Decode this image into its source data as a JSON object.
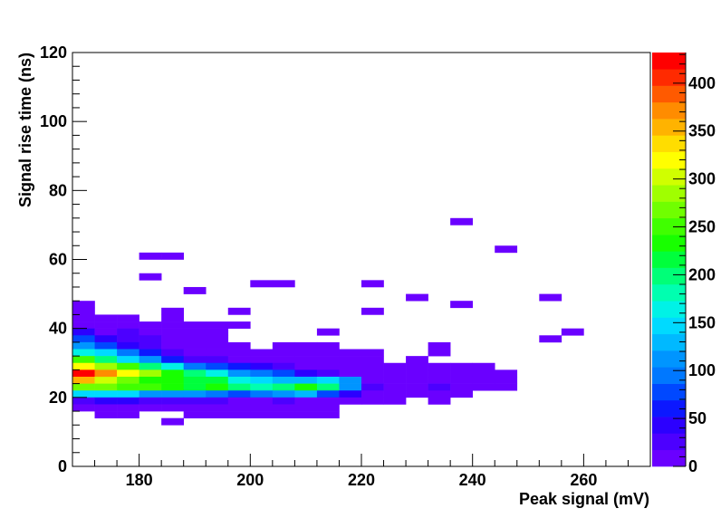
{
  "chart_data": {
    "type": "heatmap",
    "xlabel": "Peak signal (mV)",
    "ylabel": "Signal rise time (ns)",
    "xlim": [
      168,
      272
    ],
    "ylim": [
      0,
      120
    ],
    "x_ticks": [
      180,
      200,
      220,
      240,
      260
    ],
    "y_ticks": [
      0,
      20,
      40,
      60,
      80,
      100,
      120
    ],
    "bin_width_x": 4,
    "bin_width_y": 2,
    "colorbar": {
      "range": [
        0,
        432
      ],
      "ticks": [
        0,
        50,
        100,
        150,
        200,
        250,
        300,
        350,
        400
      ],
      "palette": [
        "#6a00ff",
        "#4c00ff",
        "#2c00ff",
        "#0c18ff",
        "#0048ff",
        "#0078ff",
        "#0095ff",
        "#00b9ff",
        "#00daff",
        "#00f2e6",
        "#00ffb0",
        "#00ff78",
        "#00ff3c",
        "#18ff00",
        "#40ff00",
        "#70ff00",
        "#a0ff00",
        "#d0ff00",
        "#ffff00",
        "#ffdd00",
        "#ffb300",
        "#ff8c00",
        "#ff5a00",
        "#ff2a00",
        "#ff0000"
      ]
    },
    "cells": [
      {
        "x": 168,
        "y": 46,
        "v": 2
      },
      {
        "x": 168,
        "y": 44,
        "v": 2
      },
      {
        "x": 172,
        "y": 42,
        "v": 2
      },
      {
        "x": 176,
        "y": 42,
        "v": 2
      },
      {
        "x": 184,
        "y": 42,
        "v": 2
      },
      {
        "x": 168,
        "y": 42,
        "v": 2
      },
      {
        "x": 168,
        "y": 40,
        "v": 5
      },
      {
        "x": 172,
        "y": 40,
        "v": 4
      },
      {
        "x": 176,
        "y": 40,
        "v": 3
      },
      {
        "x": 180,
        "y": 40,
        "v": 3
      },
      {
        "x": 184,
        "y": 40,
        "v": 3
      },
      {
        "x": 188,
        "y": 40,
        "v": 3
      },
      {
        "x": 192,
        "y": 40,
        "v": 3
      },
      {
        "x": 168,
        "y": 38,
        "v": 40
      },
      {
        "x": 172,
        "y": 38,
        "v": 10
      },
      {
        "x": 176,
        "y": 38,
        "v": 20
      },
      {
        "x": 180,
        "y": 38,
        "v": 5
      },
      {
        "x": 184,
        "y": 38,
        "v": 4
      },
      {
        "x": 188,
        "y": 38,
        "v": 4
      },
      {
        "x": 192,
        "y": 38,
        "v": 4
      },
      {
        "x": 168,
        "y": 36,
        "v": 70
      },
      {
        "x": 172,
        "y": 36,
        "v": 40
      },
      {
        "x": 176,
        "y": 36,
        "v": 30
      },
      {
        "x": 180,
        "y": 36,
        "v": 20
      },
      {
        "x": 184,
        "y": 36,
        "v": 4
      },
      {
        "x": 188,
        "y": 36,
        "v": 4
      },
      {
        "x": 192,
        "y": 36,
        "v": 4
      },
      {
        "x": 168,
        "y": 34,
        "v": 120
      },
      {
        "x": 172,
        "y": 34,
        "v": 80
      },
      {
        "x": 176,
        "y": 34,
        "v": 50
      },
      {
        "x": 180,
        "y": 34,
        "v": 30
      },
      {
        "x": 184,
        "y": 34,
        "v": 10
      },
      {
        "x": 188,
        "y": 34,
        "v": 5
      },
      {
        "x": 192,
        "y": 34,
        "v": 4
      },
      {
        "x": 196,
        "y": 34,
        "v": 3
      },
      {
        "x": 204,
        "y": 34,
        "v": 3
      },
      {
        "x": 208,
        "y": 34,
        "v": 3
      },
      {
        "x": 212,
        "y": 34,
        "v": 3
      },
      {
        "x": 232,
        "y": 34,
        "v": 10
      },
      {
        "x": 168,
        "y": 32,
        "v": 170
      },
      {
        "x": 172,
        "y": 32,
        "v": 140
      },
      {
        "x": 176,
        "y": 32,
        "v": 100
      },
      {
        "x": 180,
        "y": 32,
        "v": 60
      },
      {
        "x": 184,
        "y": 32,
        "v": 30
      },
      {
        "x": 188,
        "y": 32,
        "v": 10
      },
      {
        "x": 192,
        "y": 32,
        "v": 5
      },
      {
        "x": 196,
        "y": 32,
        "v": 4
      },
      {
        "x": 200,
        "y": 32,
        "v": 3
      },
      {
        "x": 204,
        "y": 32,
        "v": 3
      },
      {
        "x": 208,
        "y": 32,
        "v": 3
      },
      {
        "x": 212,
        "y": 32,
        "v": 3
      },
      {
        "x": 216,
        "y": 32,
        "v": 3
      },
      {
        "x": 220,
        "y": 32,
        "v": 3
      },
      {
        "x": 232,
        "y": 32,
        "v": 10
      },
      {
        "x": 168,
        "y": 30,
        "v": 250
      },
      {
        "x": 172,
        "y": 30,
        "v": 200
      },
      {
        "x": 176,
        "y": 30,
        "v": 150
      },
      {
        "x": 180,
        "y": 30,
        "v": 110
      },
      {
        "x": 184,
        "y": 30,
        "v": 60
      },
      {
        "x": 188,
        "y": 30,
        "v": 30
      },
      {
        "x": 192,
        "y": 30,
        "v": 20
      },
      {
        "x": 196,
        "y": 30,
        "v": 10
      },
      {
        "x": 200,
        "y": 30,
        "v": 5
      },
      {
        "x": 204,
        "y": 30,
        "v": 4
      },
      {
        "x": 208,
        "y": 30,
        "v": 4
      },
      {
        "x": 212,
        "y": 30,
        "v": 3
      },
      {
        "x": 216,
        "y": 30,
        "v": 3
      },
      {
        "x": 220,
        "y": 30,
        "v": 3
      },
      {
        "x": 228,
        "y": 30,
        "v": 3
      },
      {
        "x": 168,
        "y": 28,
        "v": 320
      },
      {
        "x": 172,
        "y": 28,
        "v": 280
      },
      {
        "x": 176,
        "y": 28,
        "v": 250
      },
      {
        "x": 180,
        "y": 28,
        "v": 200
      },
      {
        "x": 184,
        "y": 28,
        "v": 160
      },
      {
        "x": 188,
        "y": 28,
        "v": 100
      },
      {
        "x": 192,
        "y": 28,
        "v": 80
      },
      {
        "x": 196,
        "y": 28,
        "v": 60
      },
      {
        "x": 200,
        "y": 28,
        "v": 40
      },
      {
        "x": 204,
        "y": 28,
        "v": 20
      },
      {
        "x": 208,
        "y": 28,
        "v": 10
      },
      {
        "x": 212,
        "y": 28,
        "v": 10
      },
      {
        "x": 216,
        "y": 28,
        "v": 5
      },
      {
        "x": 220,
        "y": 28,
        "v": 3
      },
      {
        "x": 224,
        "y": 28,
        "v": 3
      },
      {
        "x": 228,
        "y": 28,
        "v": 3
      },
      {
        "x": 232,
        "y": 28,
        "v": 3
      },
      {
        "x": 236,
        "y": 28,
        "v": 3
      },
      {
        "x": 240,
        "y": 28,
        "v": 3
      },
      {
        "x": 168,
        "y": 26,
        "v": 432
      },
      {
        "x": 172,
        "y": 26,
        "v": 380
      },
      {
        "x": 176,
        "y": 26,
        "v": 320
      },
      {
        "x": 180,
        "y": 26,
        "v": 280
      },
      {
        "x": 184,
        "y": 26,
        "v": 240
      },
      {
        "x": 188,
        "y": 26,
        "v": 200
      },
      {
        "x": 192,
        "y": 26,
        "v": 160
      },
      {
        "x": 196,
        "y": 26,
        "v": 120
      },
      {
        "x": 200,
        "y": 26,
        "v": 90
      },
      {
        "x": 204,
        "y": 26,
        "v": 70
      },
      {
        "x": 208,
        "y": 26,
        "v": 40
      },
      {
        "x": 212,
        "y": 26,
        "v": 25
      },
      {
        "x": 216,
        "y": 26,
        "v": 15
      },
      {
        "x": 220,
        "y": 26,
        "v": 10
      },
      {
        "x": 224,
        "y": 26,
        "v": 5
      },
      {
        "x": 228,
        "y": 26,
        "v": 5
      },
      {
        "x": 232,
        "y": 26,
        "v": 4
      },
      {
        "x": 236,
        "y": 26,
        "v": 3
      },
      {
        "x": 240,
        "y": 26,
        "v": 3
      },
      {
        "x": 244,
        "y": 26,
        "v": 3
      },
      {
        "x": 168,
        "y": 24,
        "v": 360
      },
      {
        "x": 172,
        "y": 24,
        "v": 300
      },
      {
        "x": 176,
        "y": 24,
        "v": 260
      },
      {
        "x": 180,
        "y": 24,
        "v": 240
      },
      {
        "x": 184,
        "y": 24,
        "v": 230
      },
      {
        "x": 188,
        "y": 24,
        "v": 220
      },
      {
        "x": 192,
        "y": 24,
        "v": 210
      },
      {
        "x": 196,
        "y": 24,
        "v": 170
      },
      {
        "x": 200,
        "y": 24,
        "v": 140
      },
      {
        "x": 204,
        "y": 24,
        "v": 130
      },
      {
        "x": 208,
        "y": 24,
        "v": 130
      },
      {
        "x": 212,
        "y": 24,
        "v": 140
      },
      {
        "x": 216,
        "y": 24,
        "v": 110
      },
      {
        "x": 220,
        "y": 24,
        "v": 10
      },
      {
        "x": 224,
        "y": 24,
        "v": 5
      },
      {
        "x": 228,
        "y": 24,
        "v": 4
      },
      {
        "x": 232,
        "y": 24,
        "v": 10
      },
      {
        "x": 236,
        "y": 24,
        "v": 5
      },
      {
        "x": 240,
        "y": 24,
        "v": 3
      },
      {
        "x": 244,
        "y": 24,
        "v": 3
      },
      {
        "x": 168,
        "y": 22,
        "v": 270
      },
      {
        "x": 172,
        "y": 22,
        "v": 260
      },
      {
        "x": 176,
        "y": 22,
        "v": 250
      },
      {
        "x": 180,
        "y": 22,
        "v": 250
      },
      {
        "x": 184,
        "y": 22,
        "v": 230
      },
      {
        "x": 188,
        "y": 22,
        "v": 220
      },
      {
        "x": 192,
        "y": 22,
        "v": 230
      },
      {
        "x": 196,
        "y": 22,
        "v": 200
      },
      {
        "x": 200,
        "y": 22,
        "v": 180
      },
      {
        "x": 204,
        "y": 22,
        "v": 200
      },
      {
        "x": 208,
        "y": 22,
        "v": 240
      },
      {
        "x": 212,
        "y": 22,
        "v": 200
      },
      {
        "x": 216,
        "y": 22,
        "v": 110
      },
      {
        "x": 220,
        "y": 22,
        "v": 20
      },
      {
        "x": 224,
        "y": 22,
        "v": 15
      },
      {
        "x": 228,
        "y": 22,
        "v": 10
      },
      {
        "x": 232,
        "y": 22,
        "v": 20
      },
      {
        "x": 236,
        "y": 22,
        "v": 10
      },
      {
        "x": 240,
        "y": 22,
        "v": 3
      },
      {
        "x": 244,
        "y": 22,
        "v": 3
      },
      {
        "x": 168,
        "y": 20,
        "v": 150
      },
      {
        "x": 172,
        "y": 20,
        "v": 150
      },
      {
        "x": 176,
        "y": 20,
        "v": 140
      },
      {
        "x": 180,
        "y": 20,
        "v": 120
      },
      {
        "x": 184,
        "y": 20,
        "v": 120
      },
      {
        "x": 188,
        "y": 20,
        "v": 110
      },
      {
        "x": 192,
        "y": 20,
        "v": 100
      },
      {
        "x": 196,
        "y": 20,
        "v": 80
      },
      {
        "x": 200,
        "y": 20,
        "v": 90
      },
      {
        "x": 204,
        "y": 20,
        "v": 120
      },
      {
        "x": 208,
        "y": 20,
        "v": 130
      },
      {
        "x": 212,
        "y": 20,
        "v": 70
      },
      {
        "x": 216,
        "y": 20,
        "v": 40
      },
      {
        "x": 220,
        "y": 20,
        "v": 5
      },
      {
        "x": 224,
        "y": 20,
        "v": 5
      },
      {
        "x": 228,
        "y": 20,
        "v": 4
      },
      {
        "x": 232,
        "y": 20,
        "v": 4
      },
      {
        "x": 236,
        "y": 20,
        "v": 3
      },
      {
        "x": 168,
        "y": 18,
        "v": 30
      },
      {
        "x": 172,
        "y": 18,
        "v": 40
      },
      {
        "x": 176,
        "y": 18,
        "v": 40
      },
      {
        "x": 180,
        "y": 18,
        "v": 30
      },
      {
        "x": 184,
        "y": 18,
        "v": 30
      },
      {
        "x": 188,
        "y": 18,
        "v": 30
      },
      {
        "x": 192,
        "y": 18,
        "v": 20
      },
      {
        "x": 196,
        "y": 18,
        "v": 10
      },
      {
        "x": 200,
        "y": 18,
        "v": 10
      },
      {
        "x": 204,
        "y": 18,
        "v": 20
      },
      {
        "x": 208,
        "y": 18,
        "v": 10
      },
      {
        "x": 212,
        "y": 18,
        "v": 10
      },
      {
        "x": 216,
        "y": 18,
        "v": 5
      },
      {
        "x": 220,
        "y": 18,
        "v": 4
      },
      {
        "x": 224,
        "y": 18,
        "v": 3
      },
      {
        "x": 232,
        "y": 18,
        "v": 3
      },
      {
        "x": 168,
        "y": 16,
        "v": 3
      },
      {
        "x": 172,
        "y": 16,
        "v": 4
      },
      {
        "x": 176,
        "y": 16,
        "v": 3
      },
      {
        "x": 180,
        "y": 16,
        "v": 3
      },
      {
        "x": 184,
        "y": 16,
        "v": 3
      },
      {
        "x": 188,
        "y": 16,
        "v": 4
      },
      {
        "x": 192,
        "y": 16,
        "v": 4
      },
      {
        "x": 196,
        "y": 16,
        "v": 3
      },
      {
        "x": 200,
        "y": 16,
        "v": 3
      },
      {
        "x": 204,
        "y": 16,
        "v": 10
      },
      {
        "x": 208,
        "y": 16,
        "v": 4
      },
      {
        "x": 212,
        "y": 16,
        "v": 3
      },
      {
        "x": 172,
        "y": 14,
        "v": 3
      },
      {
        "x": 176,
        "y": 14,
        "v": 3
      },
      {
        "x": 188,
        "y": 14,
        "v": 3
      },
      {
        "x": 192,
        "y": 14,
        "v": 3
      },
      {
        "x": 196,
        "y": 14,
        "v": 3
      },
      {
        "x": 200,
        "y": 14,
        "v": 3
      },
      {
        "x": 204,
        "y": 14,
        "v": 3
      },
      {
        "x": 208,
        "y": 14,
        "v": 3
      },
      {
        "x": 212,
        "y": 14,
        "v": 3
      },
      {
        "x": 184,
        "y": 12,
        "v": 2
      },
      {
        "x": 196,
        "y": 40,
        "v": 2
      },
      {
        "x": 196,
        "y": 44,
        "v": 2
      },
      {
        "x": 184,
        "y": 44,
        "v": 2
      },
      {
        "x": 180,
        "y": 60,
        "v": 2
      },
      {
        "x": 184,
        "y": 60,
        "v": 2
      },
      {
        "x": 180,
        "y": 54,
        "v": 2
      },
      {
        "x": 188,
        "y": 50,
        "v": 2
      },
      {
        "x": 200,
        "y": 52,
        "v": 2
      },
      {
        "x": 204,
        "y": 52,
        "v": 2
      },
      {
        "x": 212,
        "y": 38,
        "v": 2
      },
      {
        "x": 220,
        "y": 52,
        "v": 2
      },
      {
        "x": 220,
        "y": 44,
        "v": 2
      },
      {
        "x": 228,
        "y": 48,
        "v": 2
      },
      {
        "x": 236,
        "y": 46,
        "v": 2
      },
      {
        "x": 236,
        "y": 70,
        "v": 2
      },
      {
        "x": 244,
        "y": 62,
        "v": 2
      },
      {
        "x": 252,
        "y": 48,
        "v": 2
      },
      {
        "x": 252,
        "y": 36,
        "v": 2
      },
      {
        "x": 256,
        "y": 38,
        "v": 2
      }
    ]
  }
}
